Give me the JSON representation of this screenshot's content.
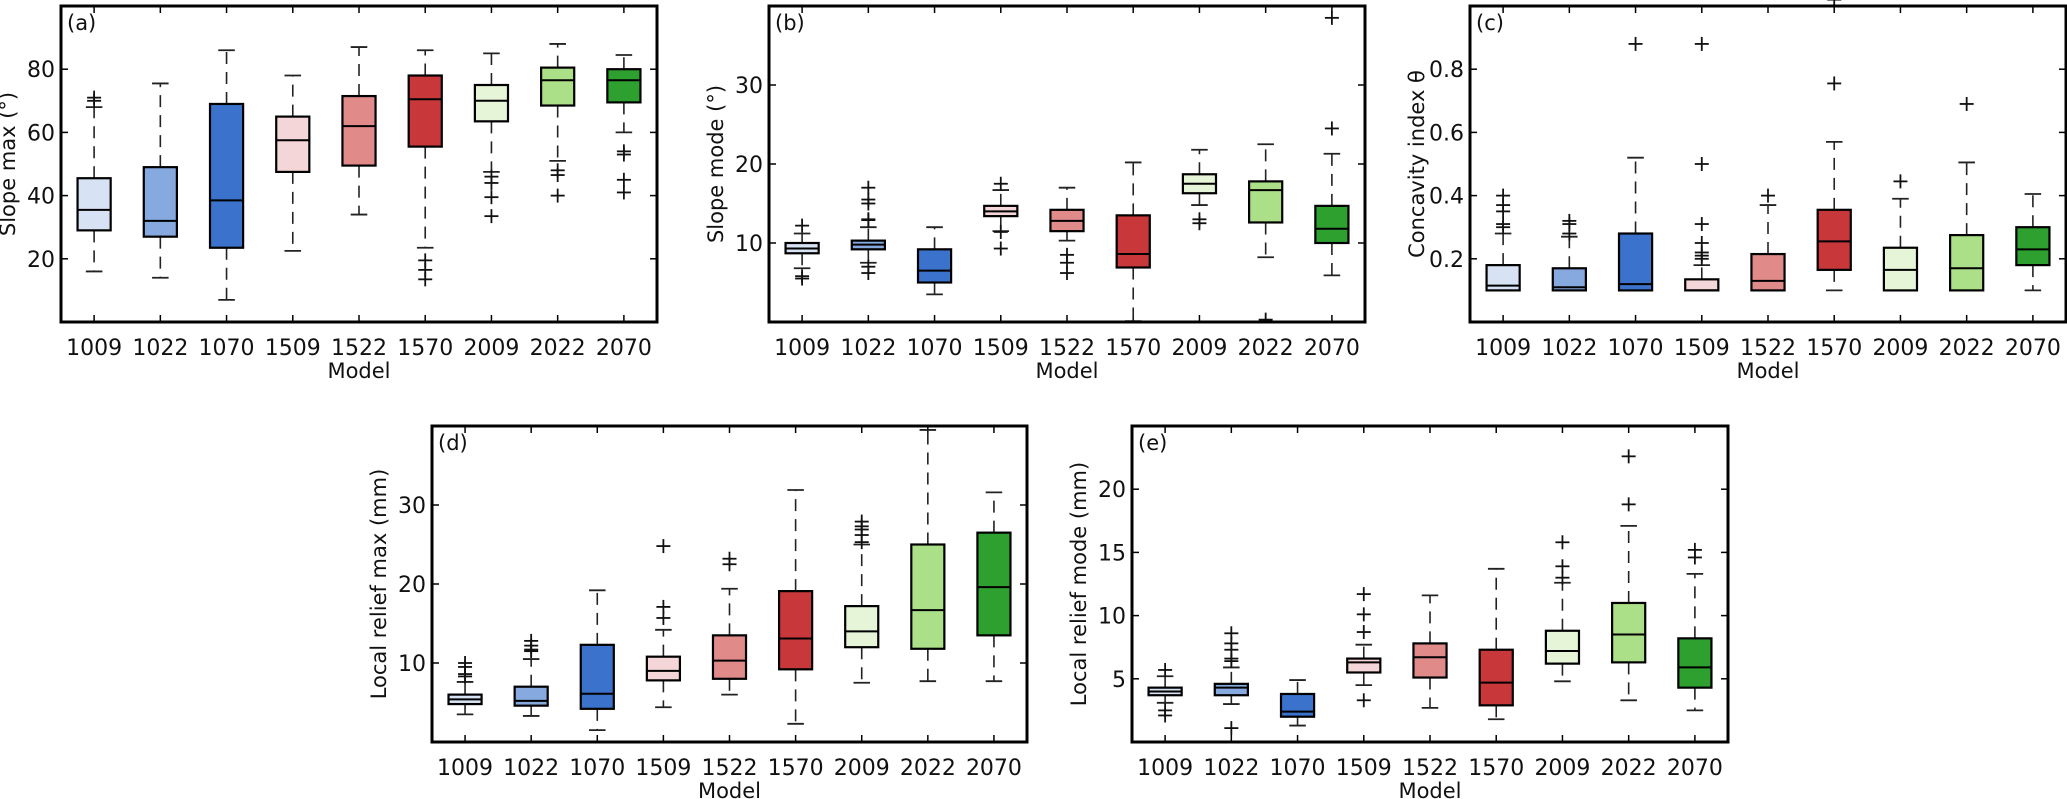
{
  "figure": {
    "categories": [
      "1009",
      "1022",
      "1070",
      "1509",
      "1522",
      "1570",
      "2009",
      "2022",
      "2070"
    ],
    "colors": [
      "#d7e3f5",
      "#86a9e0",
      "#3a72cc",
      "#f5d6d8",
      "#e08a8a",
      "#c8373a",
      "#e6f5d8",
      "#abe088",
      "#2ea030"
    ]
  },
  "chart_data": [
    {
      "type": "box",
      "panel": "(a)",
      "title": "",
      "xlabel": "Model",
      "ylabel": "Slope max (°)",
      "ylim": [
        0,
        100
      ],
      "yticks": [
        20,
        40,
        60,
        80
      ],
      "categories": [
        "1009",
        "1022",
        "1070",
        "1509",
        "1522",
        "1570",
        "2009",
        "2022",
        "2070"
      ],
      "boxes": [
        {
          "whislo": 16,
          "q1": 29,
          "med": 35.5,
          "q3": 45.5,
          "whishi": 68,
          "fliers": [
            70,
            71
          ]
        },
        {
          "whislo": 14,
          "q1": 27,
          "med": 32,
          "q3": 49,
          "whishi": 75.5,
          "fliers": []
        },
        {
          "whislo": 7,
          "q1": 23.5,
          "med": 38.5,
          "q3": 69,
          "whishi": 86,
          "fliers": []
        },
        {
          "whislo": 22.5,
          "q1": 47.5,
          "med": 57.5,
          "q3": 65,
          "whishi": 78,
          "fliers": []
        },
        {
          "whislo": 34,
          "q1": 49.5,
          "med": 62,
          "q3": 71.5,
          "whishi": 87,
          "fliers": []
        },
        {
          "whislo": 23.5,
          "q1": 55.5,
          "med": 70.5,
          "q3": 78,
          "whishi": 86,
          "fliers": [
            19.5,
            16.5,
            13.5
          ]
        },
        {
          "whislo": 47.5,
          "q1": 63.5,
          "med": 70,
          "q3": 75,
          "whishi": 85,
          "fliers": [
            46,
            44,
            39.5,
            33.5
          ]
        },
        {
          "whislo": 51,
          "q1": 68.5,
          "med": 76.5,
          "q3": 80.5,
          "whishi": 88,
          "fliers": [
            48,
            46.5,
            40
          ]
        },
        {
          "whislo": 60,
          "q1": 69.5,
          "med": 76.5,
          "q3": 80,
          "whishi": 84.5,
          "fliers": [
            54,
            53,
            45,
            41
          ]
        }
      ]
    },
    {
      "type": "box",
      "panel": "(b)",
      "title": "",
      "xlabel": "Model",
      "ylabel": "Slope mode (°)",
      "ylim": [
        0,
        40
      ],
      "yticks": [
        10,
        20,
        30
      ],
      "categories": [
        "1009",
        "1022",
        "1070",
        "1509",
        "1522",
        "1570",
        "2009",
        "2022",
        "2070"
      ],
      "boxes": [
        {
          "whislo": 6.8,
          "q1": 8.7,
          "med": 9.3,
          "q3": 10,
          "whishi": 11.2,
          "fliers": [
            12.2,
            5.8,
            5.5
          ]
        },
        {
          "whislo": 7.5,
          "q1": 9.2,
          "med": 9.8,
          "q3": 10.3,
          "whishi": 12,
          "fliers": [
            17,
            15.5,
            15,
            13,
            12.9,
            7,
            6.2
          ]
        },
        {
          "whislo": 3.5,
          "q1": 5,
          "med": 6.5,
          "q3": 9.2,
          "whishi": 12,
          "fliers": []
        },
        {
          "whislo": 11.5,
          "q1": 13.4,
          "med": 14,
          "q3": 14.7,
          "whishi": 16.7,
          "fliers": [
            17.5,
            11.4,
            9.3
          ]
        },
        {
          "whislo": 10.3,
          "q1": 11.5,
          "med": 12.8,
          "q3": 14.2,
          "whishi": 17,
          "fliers": [
            8.5,
            7.5,
            6.2
          ]
        },
        {
          "whislo": 0.1,
          "q1": 6.9,
          "med": 8.6,
          "q3": 13.5,
          "whishi": 20.2,
          "fliers": []
        },
        {
          "whislo": 14.8,
          "q1": 16.3,
          "med": 17.5,
          "q3": 18.7,
          "whishi": 21.8,
          "fliers": [
            13,
            12.5
          ]
        },
        {
          "whislo": 8.2,
          "q1": 12.6,
          "med": 16.7,
          "q3": 17.8,
          "whishi": 22.5,
          "fliers": [
            0.3
          ]
        },
        {
          "whislo": 5.9,
          "q1": 10,
          "med": 11.8,
          "q3": 14.7,
          "whishi": 21.3,
          "fliers": [
            24.5,
            38.5
          ]
        }
      ]
    },
    {
      "type": "box",
      "panel": "(c)",
      "title": "",
      "xlabel": "Model",
      "ylabel": "Concavity index θ",
      "ylim": [
        0,
        1
      ],
      "yticks": [
        0.2,
        0.4,
        0.6,
        0.8
      ],
      "categories": [
        "1009",
        "1022",
        "1070",
        "1509",
        "1522",
        "1570",
        "2009",
        "2022",
        "2070"
      ],
      "boxes": [
        {
          "whislo": 0.1,
          "q1": 0.1,
          "med": 0.115,
          "q3": 0.18,
          "whishi": 0.28,
          "fliers": [
            0.3,
            0.31,
            0.35,
            0.37,
            0.4
          ]
        },
        {
          "whislo": 0.1,
          "q1": 0.1,
          "med": 0.11,
          "q3": 0.17,
          "whishi": 0.27,
          "fliers": [
            0.28,
            0.31,
            0.32
          ]
        },
        {
          "whislo": 0.1,
          "q1": 0.1,
          "med": 0.12,
          "q3": 0.28,
          "whishi": 0.52,
          "fliers": [
            0.88
          ]
        },
        {
          "whislo": 0.1,
          "q1": 0.1,
          "med": 0.1,
          "q3": 0.135,
          "whishi": 0.18,
          "fliers": [
            0.2,
            0.21,
            0.22,
            0.25,
            0.31,
            0.5,
            0.88
          ]
        },
        {
          "whislo": 0.1,
          "q1": 0.1,
          "med": 0.13,
          "q3": 0.215,
          "whishi": 0.37,
          "fliers": [
            0.4
          ]
        },
        {
          "whislo": 0.1,
          "q1": 0.165,
          "med": 0.255,
          "q3": 0.355,
          "whishi": 0.57,
          "fliers": [
            0.755,
            1.02
          ]
        },
        {
          "whislo": 0.1,
          "q1": 0.1,
          "med": 0.165,
          "q3": 0.235,
          "whishi": 0.39,
          "fliers": [
            0.445
          ]
        },
        {
          "whislo": 0.1,
          "q1": 0.1,
          "med": 0.17,
          "q3": 0.275,
          "whishi": 0.505,
          "fliers": [
            0.69
          ]
        },
        {
          "whislo": 0.1,
          "q1": 0.18,
          "med": 0.23,
          "q3": 0.3,
          "whishi": 0.405,
          "fliers": []
        }
      ]
    },
    {
      "type": "box",
      "panel": "(d)",
      "title": "",
      "xlabel": "Model",
      "ylabel": "Local relief max (mm)",
      "ylim": [
        0,
        40
      ],
      "yticks": [
        10,
        20,
        30
      ],
      "categories": [
        "1009",
        "1022",
        "1070",
        "1509",
        "1522",
        "1570",
        "2009",
        "2022",
        "2070"
      ],
      "boxes": [
        {
          "whislo": 3.5,
          "q1": 4.8,
          "med": 5.4,
          "q3": 6,
          "whishi": 7.6,
          "fliers": [
            8.3,
            8.6,
            9.5,
            10
          ]
        },
        {
          "whislo": 3.3,
          "q1": 4.6,
          "med": 5.2,
          "q3": 7,
          "whishi": 10.5,
          "fliers": [
            11.5,
            11.7,
            12.2,
            12.8
          ]
        },
        {
          "whislo": 1.5,
          "q1": 4.2,
          "med": 6.1,
          "q3": 12.3,
          "whishi": 19.2,
          "fliers": []
        },
        {
          "whislo": 4.4,
          "q1": 7.8,
          "med": 9,
          "q3": 10.8,
          "whishi": 14.2,
          "fliers": [
            15.7,
            17.1,
            24.8
          ]
        },
        {
          "whislo": 6,
          "q1": 8,
          "med": 10.3,
          "q3": 13.5,
          "whishi": 19.4,
          "fliers": [
            22.5,
            23.2
          ]
        },
        {
          "whislo": 2.3,
          "q1": 9.2,
          "med": 13.1,
          "q3": 19.1,
          "whishi": 31.9,
          "fliers": []
        },
        {
          "whislo": 7.5,
          "q1": 12,
          "med": 14,
          "q3": 17.2,
          "whishi": 25,
          "fliers": [
            25.3,
            26.2,
            26.9,
            27.3,
            27.9
          ]
        },
        {
          "whislo": 7.7,
          "q1": 11.8,
          "med": 16.7,
          "q3": 25,
          "whishi": 39.5,
          "fliers": []
        },
        {
          "whislo": 7.7,
          "q1": 13.5,
          "med": 19.6,
          "q3": 26.5,
          "whishi": 31.6,
          "fliers": []
        }
      ]
    },
    {
      "type": "box",
      "panel": "(e)",
      "title": "",
      "xlabel": "Model",
      "ylabel": "Local relief mode (mm)",
      "ylim": [
        0,
        25
      ],
      "yticks": [
        5,
        10,
        15,
        20
      ],
      "categories": [
        "1009",
        "1022",
        "1070",
        "1509",
        "1522",
        "1570",
        "2009",
        "2022",
        "2070"
      ],
      "boxes": [
        {
          "whislo": 3.1,
          "q1": 3.7,
          "med": 4,
          "q3": 4.3,
          "whishi": 5.2,
          "fliers": [
            5.7,
            2.5,
            2.1
          ]
        },
        {
          "whislo": 3,
          "q1": 3.7,
          "med": 4.3,
          "q3": 4.6,
          "whishi": 5.9,
          "fliers": [
            6.4,
            6.6,
            7.3,
            7.8,
            8.6,
            1.1
          ]
        },
        {
          "whislo": 1.3,
          "q1": 2,
          "med": 2.4,
          "q3": 3.8,
          "whishi": 4.9,
          "fliers": []
        },
        {
          "whislo": 4.5,
          "q1": 5.5,
          "med": 6.3,
          "q3": 6.6,
          "whishi": 7.7,
          "fliers": [
            8.7,
            10.1,
            11.7,
            3.3
          ]
        },
        {
          "whislo": 2.7,
          "q1": 5.1,
          "med": 6.7,
          "q3": 7.8,
          "whishi": 11.6,
          "fliers": []
        },
        {
          "whislo": 1.8,
          "q1": 2.9,
          "med": 4.7,
          "q3": 7.3,
          "whishi": 13.7,
          "fliers": []
        },
        {
          "whislo": 4.8,
          "q1": 6.2,
          "med": 7.2,
          "q3": 8.8,
          "whishi": 12.6,
          "fliers": [
            13,
            13.9,
            15.8
          ]
        },
        {
          "whislo": 3.3,
          "q1": 6.3,
          "med": 8.5,
          "q3": 11,
          "whishi": 17.1,
          "fliers": [
            18.8,
            22.6
          ]
        },
        {
          "whislo": 2.5,
          "q1": 4.3,
          "med": 5.9,
          "q3": 8.2,
          "whishi": 13.3,
          "fliers": [
            14.6,
            15.2
          ]
        }
      ]
    }
  ]
}
